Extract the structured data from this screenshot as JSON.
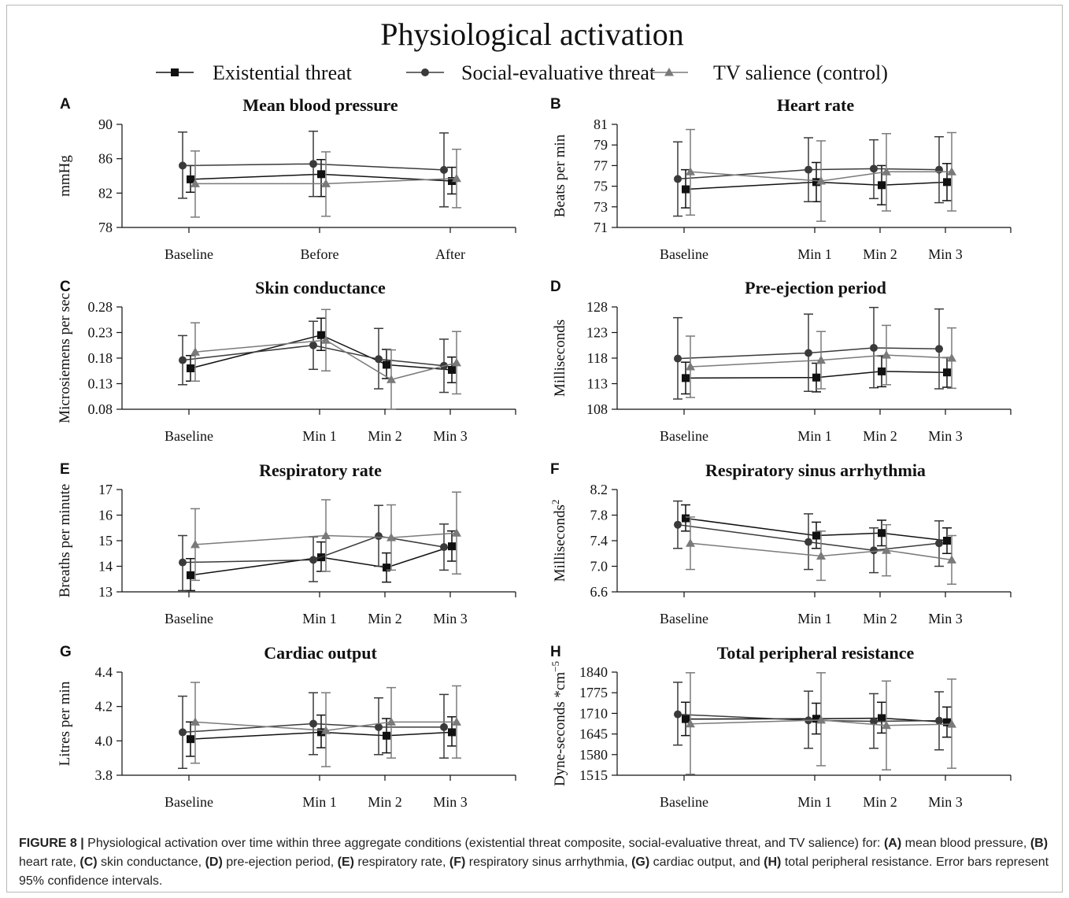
{
  "figure": {
    "title": "Physiological activation",
    "legend": [
      {
        "name": "Existential threat",
        "marker": "square",
        "color": "#111111"
      },
      {
        "name": "Social-evaluative threat",
        "marker": "circle",
        "color": "#3a3a3a"
      },
      {
        "name": "TV salience (control)",
        "marker": "triangle",
        "color": "#7a7a7a"
      }
    ]
  },
  "caption": {
    "prefix": "FIGURE 8 |",
    "text_1": " Physiological activation over time within three aggregate conditions (existential threat composite, social-evaluative threat, and TV salience) for: ",
    "a": "(A)",
    "a_text": " mean blood pressure, ",
    "b": "(B)",
    "b_text": " heart rate, ",
    "c": "(C)",
    "c_text": " skin conductance, ",
    "d": "(D)",
    "d_text": " pre-ejection period, ",
    "e": "(E)",
    "e_text": " respiratory rate, ",
    "f": "(F)",
    "f_text": " respiratory sinus arrhythmia, ",
    "g": "(G)",
    "g_text": " cardiac output, and ",
    "h": "(H)",
    "h_text": " total peripheral resistance. Error bars represent 95% confidence intervals."
  },
  "chart_data": [
    {
      "panel": "A",
      "type": "line",
      "title": "Mean blood pressure",
      "ylabel": "mmHg",
      "categories": [
        "Baseline",
        "Before",
        "After"
      ],
      "ylim": [
        78,
        90
      ],
      "yticks": [
        "78",
        "82",
        "86",
        "90"
      ],
      "series": [
        {
          "name": "Existential threat",
          "values": [
            83.6,
            84.2,
            83.4
          ],
          "ci_low": [
            82.1,
            81.6,
            81.9
          ],
          "ci_high": [
            85.2,
            85.9,
            85.0
          ]
        },
        {
          "name": "Social-evaluative threat",
          "values": [
            85.2,
            85.4,
            84.7
          ],
          "ci_low": [
            81.4,
            81.6,
            80.4
          ],
          "ci_high": [
            89.1,
            89.2,
            89.0
          ]
        },
        {
          "name": "TV salience (control)",
          "values": [
            83.1,
            83.1,
            83.7
          ],
          "ci_low": [
            79.2,
            79.3,
            80.3
          ],
          "ci_high": [
            86.9,
            86.8,
            87.1
          ]
        }
      ]
    },
    {
      "panel": "B",
      "type": "line",
      "title": "Heart rate",
      "ylabel": "Beats per min",
      "categories": [
        "Baseline",
        "Min 1",
        "Min 2",
        "Min 3"
      ],
      "ylim": [
        71,
        81
      ],
      "yticks": [
        "71",
        "73",
        "75",
        "77",
        "79",
        "81"
      ],
      "series": [
        {
          "name": "Existential threat",
          "values": [
            74.7,
            75.4,
            75.1,
            75.4
          ],
          "ci_low": [
            72.9,
            73.5,
            73.2,
            73.6
          ],
          "ci_high": [
            76.6,
            77.3,
            77.0,
            77.2
          ]
        },
        {
          "name": "Social-evaluative threat",
          "values": [
            75.7,
            76.6,
            76.7,
            76.6
          ],
          "ci_low": [
            72.1,
            73.5,
            73.8,
            73.4
          ],
          "ci_high": [
            79.3,
            79.7,
            79.5,
            79.8
          ]
        },
        {
          "name": "TV salience (control)",
          "values": [
            76.4,
            75.5,
            76.4,
            76.4
          ],
          "ci_low": [
            72.2,
            71.6,
            72.6,
            72.6
          ],
          "ci_high": [
            80.5,
            79.4,
            80.1,
            80.2
          ]
        }
      ]
    },
    {
      "panel": "C",
      "type": "line",
      "title": "Skin conductance",
      "ylabel": "Microsiemens per sec",
      "categories": [
        "Baseline",
        "Min 1",
        "Min 2",
        "Min 3"
      ],
      "ylim": [
        0.08,
        0.28
      ],
      "yticks": [
        "0.08",
        "0.13",
        "0.18",
        "0.23",
        "0.28"
      ],
      "series": [
        {
          "name": "Existential threat",
          "values": [
            0.16,
            0.225,
            0.167,
            0.157
          ],
          "ci_low": [
            0.135,
            0.195,
            0.14,
            0.132
          ],
          "ci_high": [
            0.185,
            0.258,
            0.197,
            0.182
          ]
        },
        {
          "name": "Social-evaluative threat",
          "values": [
            0.176,
            0.205,
            0.178,
            0.165
          ],
          "ci_low": [
            0.128,
            0.158,
            0.12,
            0.113
          ],
          "ci_high": [
            0.224,
            0.252,
            0.238,
            0.217
          ]
        },
        {
          "name": "TV salience (control)",
          "values": [
            0.192,
            0.215,
            0.138,
            0.171
          ],
          "ci_low": [
            0.135,
            0.155,
            0.08,
            0.11
          ],
          "ci_high": [
            0.249,
            0.275,
            0.196,
            0.232
          ]
        }
      ]
    },
    {
      "panel": "D",
      "type": "line",
      "title": "Pre-ejection period",
      "ylabel": "Milliseconds",
      "categories": [
        "Baseline",
        "Min 1",
        "Min 2",
        "Min 3"
      ],
      "ylim": [
        108,
        128
      ],
      "yticks": [
        "108",
        "113",
        "118",
        "123",
        "128"
      ],
      "series": [
        {
          "name": "Existential threat",
          "values": [
            114.1,
            114.2,
            115.4,
            115.2
          ],
          "ci_low": [
            111.0,
            111.4,
            112.4,
            112.3
          ],
          "ci_high": [
            117.2,
            117.0,
            118.4,
            118.1
          ]
        },
        {
          "name": "Social-evaluative threat",
          "values": [
            117.9,
            119.0,
            120.0,
            119.8
          ],
          "ci_low": [
            110.0,
            111.5,
            112.2,
            112.0
          ],
          "ci_high": [
            125.9,
            126.6,
            127.9,
            127.6
          ]
        },
        {
          "name": "TV salience (control)",
          "values": [
            116.3,
            117.6,
            118.6,
            118.0
          ],
          "ci_low": [
            110.3,
            112.0,
            112.8,
            112.1
          ],
          "ci_high": [
            122.3,
            123.2,
            124.4,
            123.9
          ]
        }
      ]
    },
    {
      "panel": "E",
      "type": "line",
      "title": "Respiratory rate",
      "ylabel": "Breaths per minute",
      "categories": [
        "Baseline",
        "Min 1",
        "Min 2",
        "Min 3"
      ],
      "ylim": [
        13,
        17
      ],
      "yticks": [
        "13",
        "14",
        "15",
        "16",
        "17"
      ],
      "series": [
        {
          "name": "Existential threat",
          "values": [
            13.65,
            14.35,
            13.95,
            14.78
          ],
          "ci_low": [
            13.05,
            13.8,
            13.38,
            14.2
          ],
          "ci_high": [
            14.3,
            14.95,
            14.52,
            15.38
          ]
        },
        {
          "name": "Social-evaluative threat",
          "values": [
            14.15,
            14.25,
            15.18,
            14.75
          ],
          "ci_low": [
            13.05,
            13.4,
            14.0,
            13.85
          ],
          "ci_high": [
            15.2,
            15.15,
            16.38,
            15.65
          ]
        },
        {
          "name": "TV salience (control)",
          "values": [
            14.85,
            15.2,
            15.12,
            15.3
          ],
          "ci_low": [
            13.45,
            13.8,
            13.85,
            13.7
          ],
          "ci_high": [
            16.25,
            16.6,
            16.4,
            16.9
          ]
        }
      ]
    },
    {
      "panel": "F",
      "type": "line",
      "title": "Respiratory sinus arrhythmia",
      "ylabel": "Milliseconds",
      "ylabel_sup": "2",
      "categories": [
        "Baseline",
        "Min 1",
        "Min 2",
        "Min 3"
      ],
      "ylim": [
        6.6,
        8.2
      ],
      "yticks": [
        "6.6",
        "7.0",
        "7.4",
        "7.8",
        "8.2"
      ],
      "series": [
        {
          "name": "Existential threat",
          "values": [
            7.75,
            7.48,
            7.52,
            7.4
          ],
          "ci_low": [
            7.55,
            7.28,
            7.32,
            7.2
          ],
          "ci_high": [
            7.96,
            7.69,
            7.72,
            7.6
          ]
        },
        {
          "name": "Social-evaluative threat",
          "values": [
            7.65,
            7.38,
            7.25,
            7.36
          ],
          "ci_low": [
            7.28,
            6.95,
            6.9,
            7.0
          ],
          "ci_high": [
            8.02,
            7.82,
            7.6,
            7.71
          ]
        },
        {
          "name": "TV salience (control)",
          "values": [
            7.36,
            7.16,
            7.25,
            7.1
          ],
          "ci_low": [
            6.95,
            6.78,
            6.85,
            6.72
          ],
          "ci_high": [
            7.77,
            7.55,
            7.65,
            7.48
          ]
        }
      ]
    },
    {
      "panel": "G",
      "type": "line",
      "title": "Cardiac output",
      "ylabel": "Litres per min",
      "categories": [
        "Baseline",
        "Min 1",
        "Min 2",
        "Min 3"
      ],
      "ylim": [
        3.8,
        4.4
      ],
      "yticks": [
        "3.8",
        "4.0",
        "4.2",
        "4.4"
      ],
      "series": [
        {
          "name": "Existential threat",
          "values": [
            4.01,
            4.05,
            4.03,
            4.05
          ],
          "ci_low": [
            3.91,
            3.96,
            3.93,
            3.97
          ],
          "ci_high": [
            4.11,
            4.15,
            4.13,
            4.14
          ]
        },
        {
          "name": "Social-evaluative threat",
          "values": [
            4.05,
            4.1,
            4.08,
            4.08
          ],
          "ci_low": [
            3.84,
            3.92,
            3.92,
            3.9
          ],
          "ci_high": [
            4.26,
            4.28,
            4.25,
            4.27
          ]
        },
        {
          "name": "TV salience (control)",
          "values": [
            4.11,
            4.06,
            4.11,
            4.11
          ],
          "ci_low": [
            3.87,
            3.85,
            3.9,
            3.9
          ],
          "ci_high": [
            4.34,
            4.28,
            4.31,
            4.32
          ]
        }
      ]
    },
    {
      "panel": "H",
      "type": "line",
      "title": "Total peripheral resistance",
      "ylabel": "Dyne-seconds *cm",
      "ylabel_sup": "−5",
      "categories": [
        "Baseline",
        "Min 1",
        "Min 2",
        "Min 3"
      ],
      "ylim": [
        1515,
        1840
      ],
      "yticks": [
        "1515",
        "1580",
        "1645",
        "1710",
        "1775",
        "1840"
      ],
      "series": [
        {
          "name": "Existential threat",
          "values": [
            1692,
            1693,
            1695,
            1682
          ],
          "ci_low": [
            1640,
            1645,
            1648,
            1635
          ],
          "ci_high": [
            1745,
            1742,
            1745,
            1730
          ]
        },
        {
          "name": "Social-evaluative threat",
          "values": [
            1707,
            1688,
            1685,
            1687
          ],
          "ci_low": [
            1610,
            1600,
            1600,
            1595
          ],
          "ci_high": [
            1808,
            1780,
            1772,
            1778
          ]
        },
        {
          "name": "TV salience (control)",
          "values": [
            1677,
            1689,
            1672,
            1676
          ],
          "ci_low": [
            1518,
            1545,
            1532,
            1537
          ],
          "ci_high": [
            1838,
            1838,
            1812,
            1818
          ]
        }
      ]
    }
  ]
}
